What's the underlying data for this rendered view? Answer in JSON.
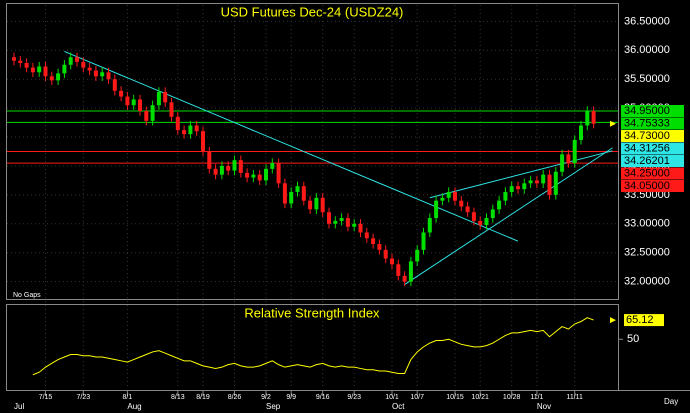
{
  "chart_data": [
    {
      "type": "candlestick",
      "title": "USD Futures Dec-24 (USDZ24)",
      "note": "No Gaps",
      "x_unit_label": "Day",
      "categories": [
        null,
        null,
        null,
        null,
        null,
        "7/15",
        null,
        null,
        null,
        null,
        null,
        "7/23",
        null,
        null,
        null,
        null,
        null,
        null,
        "8/1",
        null,
        null,
        null,
        null,
        null,
        null,
        null,
        "8/13",
        null,
        null,
        null,
        "8/19",
        null,
        null,
        null,
        null,
        "8/26",
        null,
        null,
        null,
        null,
        "9/2",
        null,
        null,
        null,
        "9/9",
        null,
        null,
        null,
        null,
        "9/16",
        null,
        null,
        null,
        null,
        "9/23",
        null,
        null,
        null,
        null,
        null,
        "10/1",
        null,
        null,
        null,
        "10/7",
        null,
        null,
        null,
        null,
        null,
        "10/15",
        null,
        null,
        null,
        "10/21",
        null,
        null,
        null,
        null,
        "10/28",
        null,
        null,
        null,
        "11/1",
        null,
        null,
        null,
        null,
        null,
        "11/11",
        null,
        null,
        null
      ],
      "months": [
        "Jul",
        null,
        null,
        null,
        null,
        null,
        null,
        null,
        null,
        null,
        null,
        null,
        null,
        null,
        null,
        null,
        null,
        null,
        "Aug",
        null,
        null,
        null,
        null,
        null,
        null,
        null,
        null,
        null,
        null,
        null,
        null,
        null,
        null,
        null,
        null,
        null,
        null,
        null,
        null,
        null,
        "Sep",
        null,
        null,
        null,
        null,
        null,
        null,
        null,
        null,
        null,
        null,
        null,
        null,
        null,
        null,
        null,
        null,
        null,
        null,
        null,
        "Oct",
        null,
        null,
        null,
        null,
        null,
        null,
        null,
        null,
        null,
        null,
        null,
        null,
        null,
        null,
        null,
        null,
        null,
        null,
        null,
        null,
        null,
        null,
        "Nov",
        null,
        null,
        null,
        null,
        null,
        null,
        null,
        null,
        null
      ],
      "open": [
        35.88,
        35.82,
        35.78,
        35.7,
        35.62,
        35.72,
        35.55,
        35.48,
        35.6,
        35.75,
        35.88,
        35.8,
        35.7,
        35.65,
        35.55,
        35.62,
        35.5,
        35.3,
        35.2,
        35.05,
        35.15,
        34.95,
        34.78,
        35.05,
        35.28,
        35.1,
        34.85,
        34.62,
        34.55,
        34.7,
        34.6,
        34.25,
        33.95,
        33.85,
        34.0,
        33.92,
        34.1,
        33.88,
        33.8,
        33.85,
        33.75,
        33.95,
        34.05,
        33.7,
        33.35,
        33.55,
        33.65,
        33.4,
        33.25,
        33.45,
        33.2,
        33.0,
        33.05,
        33.1,
        32.95,
        33.0,
        32.85,
        32.75,
        32.65,
        32.55,
        32.4,
        32.3,
        32.1,
        32.0,
        32.35,
        32.55,
        32.85,
        33.1,
        33.4,
        33.45,
        33.55,
        33.4,
        33.3,
        33.2,
        33.05,
        32.98,
        33.1,
        33.25,
        33.4,
        33.55,
        33.65,
        33.6,
        33.7,
        33.75,
        33.7,
        33.85,
        33.5,
        33.9,
        34.2,
        34.05,
        34.45,
        34.7,
        34.95
      ],
      "high": [
        35.96,
        35.9,
        35.86,
        35.78,
        35.8,
        35.8,
        35.63,
        35.68,
        35.83,
        35.96,
        35.96,
        35.88,
        35.78,
        35.73,
        35.7,
        35.7,
        35.58,
        35.38,
        35.28,
        35.23,
        35.23,
        35.03,
        35.13,
        35.36,
        35.36,
        35.18,
        34.93,
        34.7,
        34.78,
        34.78,
        34.68,
        34.33,
        34.03,
        34.08,
        34.08,
        34.18,
        34.18,
        33.96,
        33.93,
        33.93,
        34.03,
        34.13,
        34.13,
        33.78,
        33.63,
        33.73,
        33.73,
        33.48,
        33.53,
        33.53,
        33.28,
        33.13,
        33.18,
        33.18,
        33.08,
        33.08,
        32.93,
        32.83,
        32.73,
        32.63,
        32.48,
        32.38,
        32.18,
        32.43,
        32.63,
        32.93,
        33.18,
        33.48,
        33.53,
        33.63,
        33.63,
        33.48,
        33.38,
        33.28,
        33.13,
        33.18,
        33.33,
        33.48,
        33.63,
        33.73,
        33.73,
        33.78,
        33.83,
        33.83,
        33.93,
        33.93,
        33.98,
        34.28,
        34.28,
        34.53,
        34.78,
        35.03,
        35.03
      ],
      "low": [
        35.74,
        35.7,
        35.62,
        35.54,
        35.54,
        35.47,
        35.4,
        35.4,
        35.52,
        35.67,
        35.72,
        35.62,
        35.57,
        35.47,
        35.47,
        35.42,
        35.22,
        35.12,
        34.97,
        34.97,
        34.87,
        34.7,
        34.7,
        34.97,
        35.02,
        34.77,
        34.54,
        34.47,
        34.47,
        34.52,
        34.17,
        33.87,
        33.77,
        33.77,
        33.84,
        33.84,
        33.8,
        33.72,
        33.72,
        33.67,
        33.67,
        33.87,
        33.62,
        33.27,
        33.27,
        33.47,
        33.32,
        33.17,
        33.17,
        33.12,
        32.92,
        32.92,
        32.97,
        32.87,
        32.87,
        32.77,
        32.67,
        32.57,
        32.47,
        32.32,
        32.22,
        32.02,
        31.92,
        31.92,
        32.27,
        32.47,
        32.77,
        33.02,
        33.32,
        33.37,
        33.32,
        33.22,
        33.12,
        32.97,
        32.9,
        32.9,
        33.02,
        33.17,
        33.32,
        33.47,
        33.52,
        33.52,
        33.62,
        33.62,
        33.62,
        33.42,
        33.42,
        33.82,
        33.97,
        33.97,
        34.37,
        34.62,
        34.65
      ],
      "close": [
        35.82,
        35.78,
        35.7,
        35.62,
        35.72,
        35.55,
        35.48,
        35.6,
        35.75,
        35.88,
        35.8,
        35.7,
        35.65,
        35.55,
        35.62,
        35.5,
        35.3,
        35.2,
        35.05,
        35.15,
        34.95,
        34.78,
        35.05,
        35.28,
        35.1,
        34.85,
        34.62,
        34.55,
        34.7,
        34.6,
        34.25,
        33.95,
        33.85,
        34.0,
        33.92,
        34.1,
        33.88,
        33.8,
        33.85,
        33.75,
        33.95,
        34.05,
        33.7,
        33.35,
        33.55,
        33.65,
        33.4,
        33.25,
        33.45,
        33.2,
        33.0,
        33.05,
        33.1,
        32.95,
        33.0,
        32.85,
        32.75,
        32.65,
        32.55,
        32.4,
        32.3,
        32.1,
        32.0,
        32.35,
        32.55,
        32.85,
        33.1,
        33.4,
        33.45,
        33.55,
        33.4,
        33.3,
        33.2,
        33.05,
        32.98,
        33.1,
        33.25,
        33.4,
        33.55,
        33.65,
        33.6,
        33.7,
        33.75,
        33.7,
        33.85,
        33.5,
        33.9,
        34.2,
        34.05,
        34.45,
        34.7,
        34.95,
        34.73
      ],
      "up_color": "#00e000",
      "down_color": "#ff1a1a",
      "last_label": {
        "value": 34.73,
        "label": "34.73000",
        "color": "#ffff00"
      },
      "levels": [
        {
          "value": 34.95,
          "label": "34.95000",
          "color": "#00dd00"
        },
        {
          "value": 34.75333,
          "label": "34.75333",
          "color": "#00dd00"
        },
        {
          "value": 34.25,
          "label": "34.25000",
          "color": "#ff1a1a"
        },
        {
          "value": 34.05,
          "label": "34.05000",
          "color": "#ff1a1a"
        }
      ],
      "trendlines": [
        {
          "x": [
            8,
            80
          ],
          "y": [
            35.98,
            32.7
          ],
          "color": "#2ee6e6"
        },
        {
          "x": [
            62,
            95
          ],
          "y": [
            31.95,
            34.31256
          ],
          "label": "34.31256",
          "color": "#2ee6e6"
        },
        {
          "x": [
            66,
            95
          ],
          "y": [
            33.45,
            34.26201
          ],
          "label": "34.26201",
          "color": "#2ee6e6"
        }
      ],
      "ylim": [
        31.7,
        36.8
      ],
      "yticks": [
        {
          "value": 32,
          "label": "32.00000"
        },
        {
          "value": 32.5,
          "label": "32.50000"
        },
        {
          "value": 33,
          "label": "33.00000"
        },
        {
          "value": 33.5,
          "label": "33.50000"
        },
        {
          "value": 34,
          "label": "34.00000"
        },
        {
          "value": 34.5,
          "label": "34.50000"
        },
        {
          "value": 35,
          "label": "35.00000"
        },
        {
          "value": 35.5,
          "label": "35.50000"
        },
        {
          "value": 36,
          "label": "36.00000"
        },
        {
          "value": 36.5,
          "label": "36.50000"
        }
      ],
      "grid": true
    },
    {
      "type": "line",
      "title": "Relative Strength Index",
      "color": "#ffff00",
      "values": [
        null,
        null,
        null,
        22,
        24,
        28,
        31,
        34,
        36,
        38,
        38,
        37,
        37,
        36,
        36,
        35,
        34,
        33,
        32,
        34,
        36,
        38,
        40,
        41,
        39,
        37,
        35,
        33,
        33,
        31,
        29,
        28,
        27,
        28,
        30,
        31,
        29,
        28,
        28,
        29,
        31,
        33,
        30,
        28,
        29,
        30,
        29,
        28,
        30,
        31,
        29,
        28,
        29,
        28,
        28,
        27,
        26,
        26,
        25,
        25,
        24,
        23,
        23,
        34,
        40,
        44,
        47,
        49,
        49,
        50,
        48,
        46,
        45,
        44,
        44,
        45,
        47,
        50,
        53,
        55,
        55,
        56,
        57,
        56,
        57,
        52,
        56,
        60,
        58,
        62,
        64,
        67,
        65.12
      ],
      "last_label": {
        "value": 65.12,
        "label": "65.12"
      },
      "ylim": [
        10,
        77
      ],
      "yticks": [
        50
      ]
    }
  ]
}
